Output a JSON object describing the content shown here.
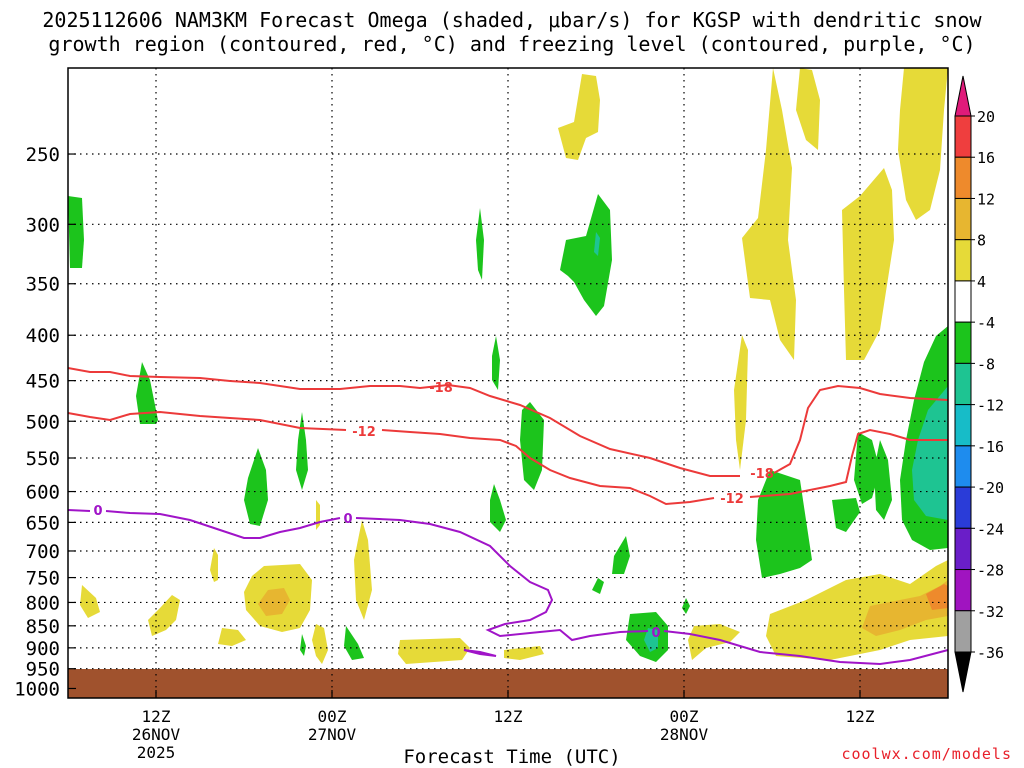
{
  "chart_data": {
    "type": "heatmap",
    "title": "2025112606 NAM3KM Forecast Omega (shaded, μbar/s) for KGSP with dendritic snow",
    "subtitle": "growth region (contoured, red, °C) and freezing level (contoured, purple, °C)",
    "xlabel": "Forecast Time (UTC)",
    "ylabel": "",
    "credit": "coolwx.com/models",
    "x_ticks": [
      {
        "time": "2025-11-26T12Z",
        "label": [
          "12Z",
          "26NOV",
          "2025"
        ]
      },
      {
        "time": "2025-11-27T00Z",
        "label": [
          "00Z",
          "27NOV"
        ]
      },
      {
        "time": "2025-11-27T12Z",
        "label": [
          "12Z"
        ]
      },
      {
        "time": "2025-11-28T00Z",
        "label": [
          "00Z",
          "28NOV"
        ]
      },
      {
        "time": "2025-11-28T12Z",
        "label": [
          "12Z"
        ]
      }
    ],
    "xlim": [
      "2025-11-26T06Z",
      "2025-11-28T18Z"
    ],
    "y_ticks": [
      250,
      300,
      350,
      400,
      450,
      500,
      550,
      600,
      650,
      700,
      750,
      800,
      850,
      900,
      950,
      1000
    ],
    "ylim_hPa": [
      1025,
      200
    ],
    "grid": true,
    "colorbar": {
      "levels": [
        20,
        16,
        12,
        8,
        4,
        -4,
        -8,
        -12,
        -16,
        -20,
        -24,
        -28,
        -32,
        -36
      ],
      "colors": [
        "#e01b7a",
        "#ef3e3e",
        "#ee8a2c",
        "#e7b630",
        "#e6da38",
        "#ffffff",
        "#1cc41c",
        "#1ec492",
        "#17bcc8",
        "#1e8cee",
        "#2a3cd8",
        "#6a1ec8",
        "#a014c0",
        "#a0a0a0",
        "#000000"
      ]
    },
    "contours": [
      {
        "label": "-18",
        "color": "#ec3a3a",
        "description": "dendritic growth upper bound"
      },
      {
        "label": "-12",
        "color": "#ec3a3a",
        "description": "dendritic growth lower bound"
      },
      {
        "label": "0",
        "color": "#a014c8",
        "description": "freezing level"
      }
    ]
  }
}
